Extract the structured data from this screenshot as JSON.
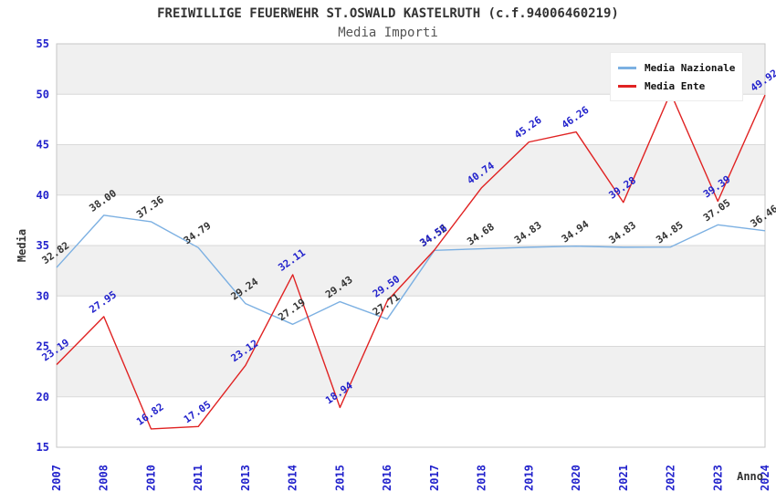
{
  "header": {
    "title": "FREIWILLIGE FEUERWEHR ST.OSWALD KASTELRUTH (c.f.94006460219)",
    "subtitle": "Media Importi"
  },
  "axes": {
    "y_title": "Media",
    "x_title": "Anno",
    "y_ticks": [
      15,
      20,
      25,
      30,
      35,
      40,
      45,
      50,
      55
    ],
    "x_ticks": [
      "2007",
      "2008",
      "2010",
      "2011",
      "2013",
      "2014",
      "2015",
      "2016",
      "2017",
      "2018",
      "2019",
      "2020",
      "2021",
      "2022",
      "2023",
      "2024"
    ]
  },
  "legend": {
    "items": [
      {
        "label": "Media Nazionale",
        "color": "#7CB0E2"
      },
      {
        "label": "Media Ente",
        "color": "#E02222"
      }
    ]
  },
  "colors": {
    "tick_blue": "#2222CC",
    "band_gray": "#F0F0F0",
    "gridline": "#D9D9D9",
    "plot_border": "#C6C6C6",
    "national_line": "#7CB0E2",
    "entity_line": "#E02222",
    "national_label": "#333333",
    "entity_label": "#2222CC"
  },
  "chart_data": {
    "type": "line",
    "title": "FREIWILLIGE FEUERWEHR ST.OSWALD KASTELRUTH (c.f.94006460219)",
    "subtitle": "Media Importi",
    "xlabel": "Anno",
    "ylabel": "Media",
    "ylim": [
      15,
      55
    ],
    "grid": "horizontal-bands-every-5",
    "legend_position": "top-right-inside",
    "categories": [
      "2007",
      "2008",
      "2010",
      "2011",
      "2013",
      "2014",
      "2015",
      "2016",
      "2017",
      "2018",
      "2019",
      "2020",
      "2021",
      "2022",
      "2023",
      "2024"
    ],
    "series": [
      {
        "name": "Media Nazionale",
        "color": "#7CB0E2",
        "label_color": "#333333",
        "values": [
          32.82,
          38.0,
          37.36,
          34.79,
          29.24,
          27.19,
          29.43,
          27.71,
          34.52,
          34.68,
          34.83,
          34.94,
          34.83,
          34.85,
          37.05,
          36.46
        ],
        "labels": [
          "32.82",
          "38.00",
          "37.36",
          "34.79",
          "29.24",
          "27.19",
          "29.43",
          "27.71",
          "34.52",
          "34.68",
          "34.83",
          "34.94",
          "34.83",
          "34.85",
          "37.05",
          "36.46"
        ]
      },
      {
        "name": "Media Ente",
        "color": "#E02222",
        "label_color": "#2222CC",
        "values": [
          23.19,
          27.95,
          16.82,
          17.05,
          23.12,
          32.11,
          18.94,
          29.5,
          34.56,
          40.74,
          45.26,
          46.26,
          39.28,
          50.15,
          39.39,
          49.92
        ],
        "labels": [
          "23.19",
          "27.95",
          "16.82",
          "17.05",
          "23.12",
          "32.11",
          "18.94",
          "29.50",
          "34.56",
          "40.74",
          "45.26",
          "46.26",
          "39.28",
          "",
          "39.39",
          "49.92"
        ]
      }
    ]
  }
}
